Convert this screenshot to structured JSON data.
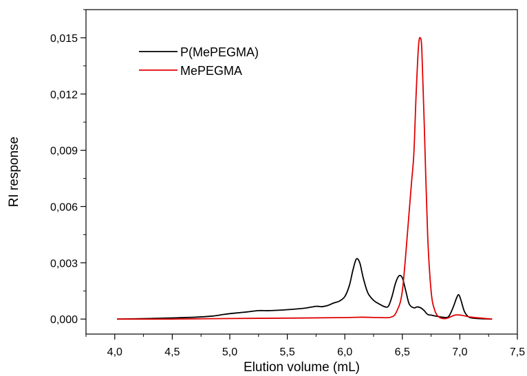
{
  "chart_data": {
    "type": "line",
    "xlabel": "Elution volume (mL)",
    "ylabel": "RI response",
    "xlim": [
      3.75,
      7.5
    ],
    "ylim": [
      -0.0008,
      0.0165
    ],
    "xticks": [
      4.0,
      4.5,
      5.0,
      5.5,
      6.0,
      6.5,
      7.0,
      7.5
    ],
    "xtick_labels": [
      "4,0",
      "4,5",
      "5,0",
      "5,5",
      "6,0",
      "6,5",
      "7,0",
      "7,5"
    ],
    "yticks": [
      0.0,
      0.003,
      0.006,
      0.009,
      0.012,
      0.015
    ],
    "ytick_labels": [
      "0,000",
      "0,003",
      "0,006",
      "0,009",
      "0,012",
      "0,015"
    ],
    "grid": false,
    "legend_position": "top-left",
    "series": [
      {
        "name": "P(MePEGMA)",
        "color": "#000000",
        "x": [
          4.02,
          4.3,
          4.5,
          4.7,
          4.85,
          4.95,
          5.05,
          5.15,
          5.25,
          5.35,
          5.5,
          5.65,
          5.75,
          5.8,
          5.85,
          5.9,
          5.95,
          6.0,
          6.04,
          6.07,
          6.1,
          6.13,
          6.16,
          6.2,
          6.25,
          6.3,
          6.35,
          6.38,
          6.41,
          6.44,
          6.47,
          6.5,
          6.53,
          6.56,
          6.6,
          6.63,
          6.66,
          6.69,
          6.72,
          6.76,
          6.8,
          6.85,
          6.9,
          6.94,
          6.97,
          6.99,
          7.01,
          7.04,
          7.08,
          7.15,
          7.28
        ],
        "y": [
          0.0,
          3e-05,
          6e-05,
          0.0001,
          0.00016,
          0.00025,
          0.00032,
          0.00038,
          0.00045,
          0.00045,
          0.0005,
          0.00058,
          0.00068,
          0.00066,
          0.00072,
          0.00085,
          0.00095,
          0.0012,
          0.0018,
          0.0026,
          0.0032,
          0.003,
          0.0022,
          0.0014,
          0.001,
          0.0008,
          0.00065,
          0.0007,
          0.0012,
          0.0019,
          0.0023,
          0.0022,
          0.0015,
          0.0008,
          0.0006,
          0.00065,
          0.0006,
          0.00045,
          0.00025,
          0.0002,
          0.00015,
          0.0001,
          0.00012,
          0.0006,
          0.0011,
          0.0013,
          0.001,
          0.0004,
          0.0001,
          3e-05,
          0.0
        ]
      },
      {
        "name": "MePEGMA",
        "color": "#e00000",
        "x": [
          4.02,
          4.5,
          5.0,
          5.5,
          6.0,
          6.15,
          6.3,
          6.4,
          6.45,
          6.5,
          6.55,
          6.58,
          6.6,
          6.62,
          6.64,
          6.655,
          6.67,
          6.69,
          6.72,
          6.75,
          6.78,
          6.82,
          6.88,
          6.95,
          6.98,
          7.02,
          7.1,
          7.28
        ],
        "y": [
          0.0,
          0.0,
          3e-05,
          5e-05,
          8e-05,
          0.0001,
          8e-05,
          0.0001,
          0.0004,
          0.0015,
          0.005,
          0.0073,
          0.0088,
          0.012,
          0.0145,
          0.015,
          0.0143,
          0.0105,
          0.0045,
          0.0015,
          0.0005,
          0.0001,
          3e-05,
          0.0002,
          0.00022,
          0.0002,
          0.0001,
          0.0
        ]
      }
    ]
  }
}
